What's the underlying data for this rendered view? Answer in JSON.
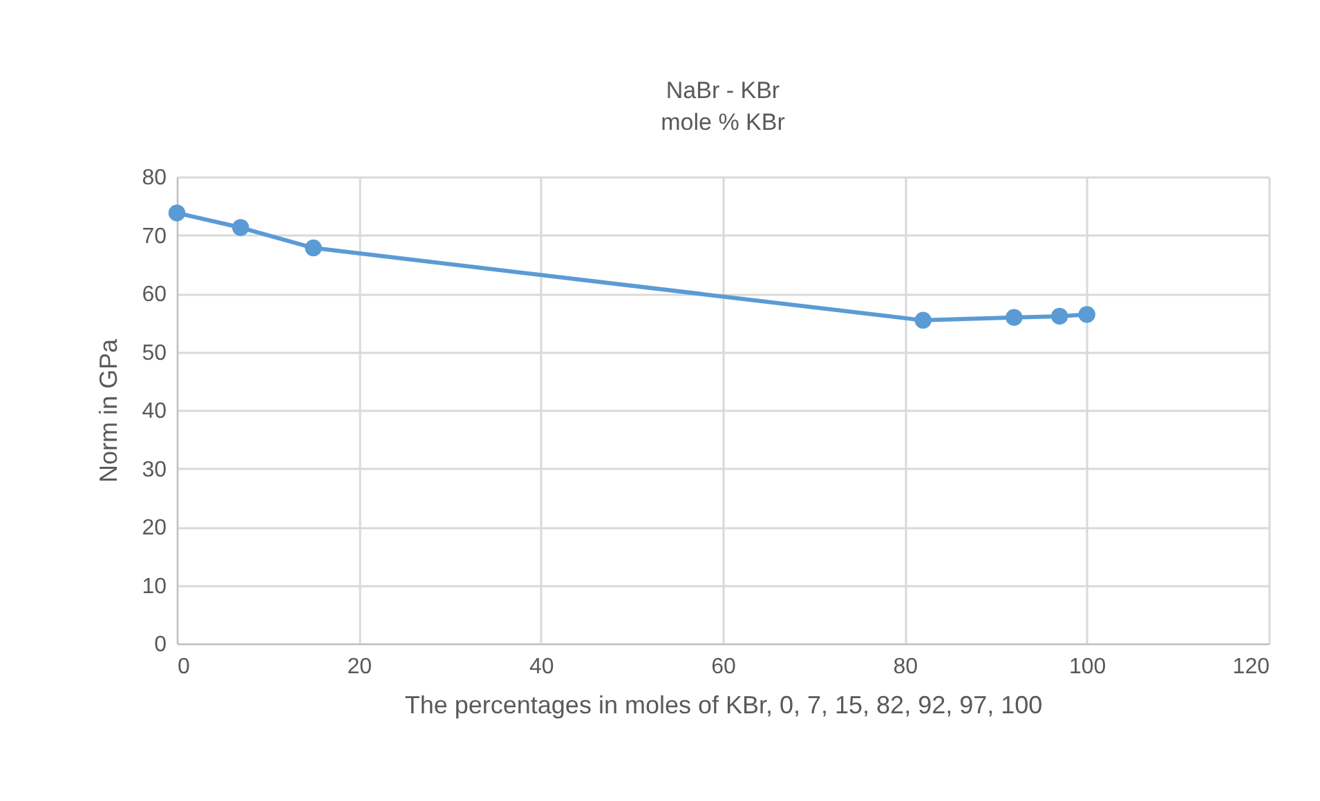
{
  "chart_data": {
    "type": "line",
    "title": "NaBr - KBr",
    "subtitle": "mole % KBr",
    "xlabel": "The percentages in moles of KBr, 0, 7, 15, 82, 92, 97, 100",
    "ylabel": "Norm in GPa",
    "x": [
      0,
      7,
      15,
      82,
      92,
      97,
      100
    ],
    "series": [
      {
        "color": "#5b9bd5",
        "values": [
          73.8,
          71.3,
          67.8,
          55.4,
          55.9,
          56.1,
          56.4
        ]
      }
    ],
    "xlim": [
      0,
      120
    ],
    "xticks": [
      0,
      20,
      40,
      60,
      80,
      100,
      120
    ],
    "ylim": [
      0,
      80
    ],
    "yticks": [
      0,
      10,
      20,
      30,
      40,
      50,
      60,
      70,
      80
    ],
    "grid": true,
    "marker": "circle",
    "line_style": "solid"
  }
}
